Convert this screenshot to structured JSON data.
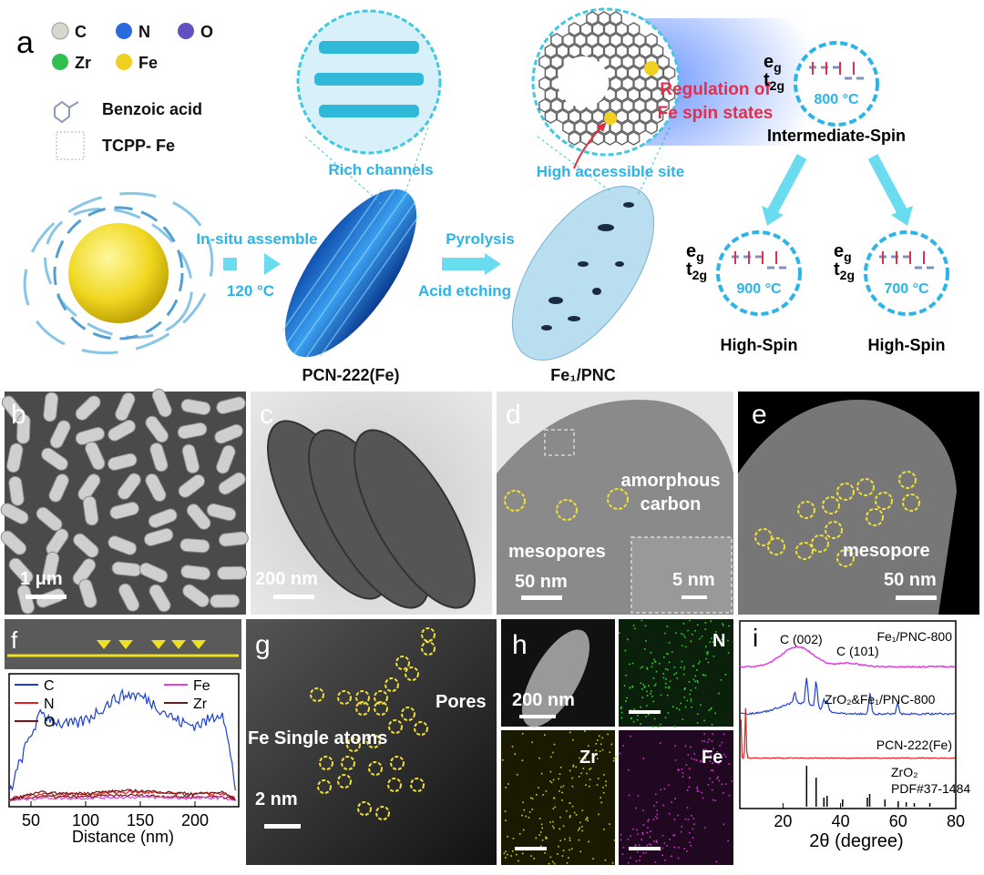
{
  "panel_a": {
    "label": "a",
    "legend": [
      "C",
      "N",
      "O",
      "Zr",
      "Fe"
    ],
    "ligands": [
      "Benzoic acid",
      "TCPP- Fe"
    ],
    "step1": [
      "In-situ assemble",
      "120 °C"
    ],
    "product1": "PCN-222(Fe)",
    "zoom1": "Rich channels",
    "step2": [
      "Pyrolysis",
      "Acid etching"
    ],
    "product2": "Fe₁/PNC",
    "zoom2": "High accessible site",
    "regulation": [
      "Regulation of",
      "Fe spin states"
    ],
    "orbital": {
      "e": "e",
      "e_sub": "g",
      "t": "t",
      "t_sub": "2g"
    },
    "states": [
      {
        "temp": "800 °C",
        "spin": "Intermediate-Spin"
      },
      {
        "temp": "900 °C",
        "spin": "High-Spin"
      },
      {
        "temp": "700 °C",
        "spin": "High-Spin"
      }
    ]
  },
  "panel_b": {
    "label": "b",
    "scale": "1 μm"
  },
  "panel_c": {
    "label": "c",
    "scale": "200 nm"
  },
  "panel_d": {
    "label": "d",
    "note": [
      "amorphous",
      "carbon"
    ],
    "pores": "mesopores",
    "scale": "50 nm",
    "inset_scale": "5 nm"
  },
  "panel_e": {
    "label": "e",
    "pores": "mesopore",
    "scale": "50 nm"
  },
  "panel_f": {
    "label": "f",
    "legend": [
      {
        "name": "C",
        "color": "#1f3fd0"
      },
      {
        "name": "N",
        "color": "#e02020"
      },
      {
        "name": "O",
        "color": "#7a1010"
      },
      {
        "name": "Fe",
        "color": "#e040e0"
      },
      {
        "name": "Zr",
        "color": "#6a1a1a"
      }
    ],
    "xticks": [
      50,
      100,
      150,
      200
    ],
    "xlabel": "Distance (nm)"
  },
  "panel_g": {
    "label": "g",
    "pores": "Pores",
    "atoms": "Fe Single atoms",
    "scale": "2 nm"
  },
  "panel_h": {
    "label": "h",
    "scale": "200 nm",
    "maps": [
      "N",
      "Zr",
      "Fe"
    ]
  },
  "panel_i": {
    "label": "i",
    "curves": [
      "Fe₁/PNC-800",
      "ZrO₂&Fe₁/PNC-800",
      "PCN-222(Fe)"
    ],
    "peaks": [
      "C (002)",
      "C (101)"
    ],
    "reference": [
      "ZrO₂",
      "PDF#37-1484"
    ],
    "xticks": [
      20,
      40,
      60,
      80
    ],
    "xlabel": "2θ (degree)"
  }
}
